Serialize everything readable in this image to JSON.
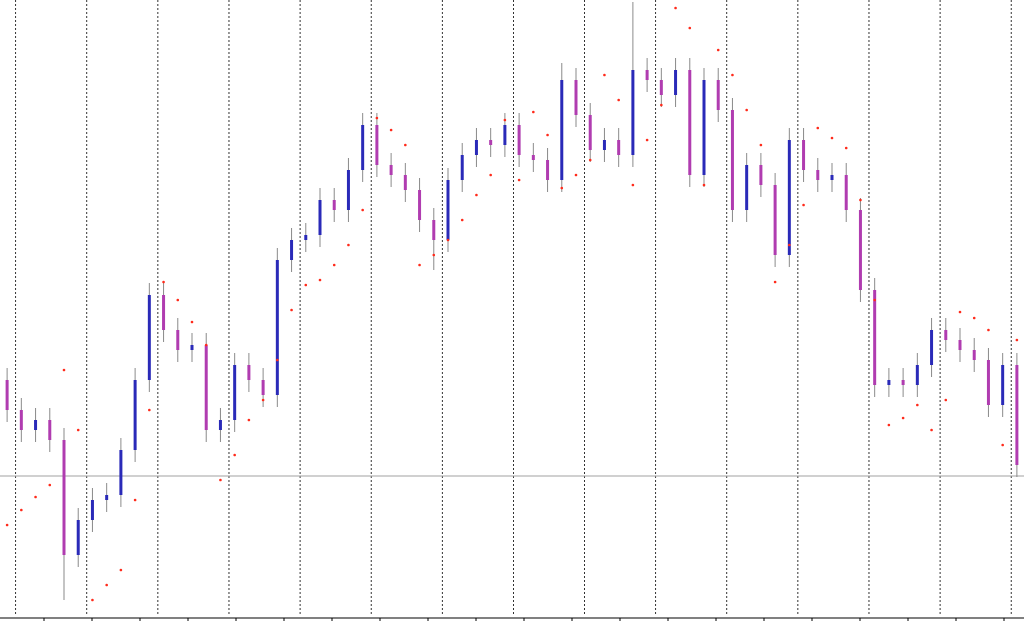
{
  "chart_data": {
    "type": "candlestick",
    "ylim": [
      0,
      620
    ],
    "grid": true,
    "up_color": "#2a2ab8",
    "down_color": "#b03cb0",
    "wick_color": "#8a8a8a",
    "sar_color": "#ff2a1a",
    "hline_color": "#a0a0a0",
    "hline": 144,
    "open": [
      240,
      210,
      190,
      200,
      180,
      65,
      100,
      120,
      125,
      170,
      240,
      325,
      290,
      270,
      275,
      190,
      200,
      255,
      240,
      225,
      360,
      380,
      385,
      420,
      410,
      450,
      495,
      455,
      445,
      430,
      400,
      380,
      440,
      465,
      480,
      475,
      495,
      465,
      460,
      440,
      540,
      505,
      470,
      480,
      465,
      550,
      540,
      525,
      550,
      445,
      540,
      510,
      410,
      455,
      435,
      365,
      480,
      450,
      440,
      445,
      410,
      330,
      235,
      240,
      235,
      255,
      290,
      280,
      270,
      260,
      215,
      255
    ],
    "high": [
      252,
      222,
      212,
      212,
      192,
      112,
      132,
      137,
      182,
      252,
      337,
      337,
      302,
      287,
      287,
      212,
      267,
      267,
      252,
      372,
      392,
      397,
      432,
      432,
      462,
      507,
      507,
      467,
      457,
      442,
      412,
      452,
      477,
      492,
      492,
      507,
      507,
      477,
      472,
      557,
      552,
      517,
      492,
      492,
      618,
      562,
      552,
      562,
      562,
      552,
      552,
      522,
      467,
      467,
      447,
      492,
      492,
      462,
      457,
      457,
      422,
      342,
      252,
      252,
      267,
      302,
      302,
      292,
      282,
      272,
      267,
      267
    ],
    "low": [
      198,
      178,
      178,
      168,
      20,
      53,
      88,
      108,
      113,
      158,
      228,
      278,
      258,
      258,
      178,
      178,
      188,
      228,
      213,
      213,
      348,
      368,
      373,
      398,
      398,
      438,
      443,
      433,
      418,
      388,
      350,
      368,
      428,
      453,
      463,
      463,
      453,
      448,
      428,
      428,
      493,
      458,
      458,
      453,
      453,
      528,
      513,
      513,
      433,
      433,
      498,
      398,
      398,
      423,
      353,
      353,
      438,
      428,
      428,
      398,
      318,
      223,
      223,
      223,
      223,
      243,
      268,
      258,
      248,
      203,
      203,
      143
    ],
    "close": [
      210,
      190,
      200,
      180,
      65,
      100,
      120,
      125,
      170,
      240,
      325,
      290,
      270,
      275,
      190,
      200,
      255,
      240,
      225,
      360,
      380,
      385,
      420,
      410,
      450,
      495,
      455,
      445,
      430,
      400,
      380,
      440,
      465,
      480,
      475,
      495,
      465,
      460,
      440,
      540,
      505,
      470,
      480,
      465,
      550,
      540,
      525,
      550,
      445,
      540,
      510,
      410,
      455,
      435,
      365,
      480,
      450,
      440,
      445,
      410,
      330,
      235,
      240,
      235,
      255,
      290,
      280,
      270,
      260,
      215,
      255,
      155
    ],
    "sar": [
      95,
      110,
      123,
      135,
      250,
      190,
      20,
      35,
      50,
      120,
      210,
      338,
      320,
      298,
      275,
      140,
      165,
      200,
      220,
      260,
      310,
      335,
      340,
      355,
      375,
      410,
      502,
      490,
      475,
      355,
      365,
      380,
      400,
      425,
      445,
      500,
      440,
      508,
      485,
      432,
      445,
      460,
      545,
      520,
      435,
      480,
      515,
      612,
      592,
      435,
      570,
      545,
      510,
      475,
      338,
      375,
      415,
      492,
      482,
      472,
      420,
      320,
      195,
      202,
      215,
      190,
      220,
      308,
      302,
      290,
      175,
      280
    ]
  }
}
